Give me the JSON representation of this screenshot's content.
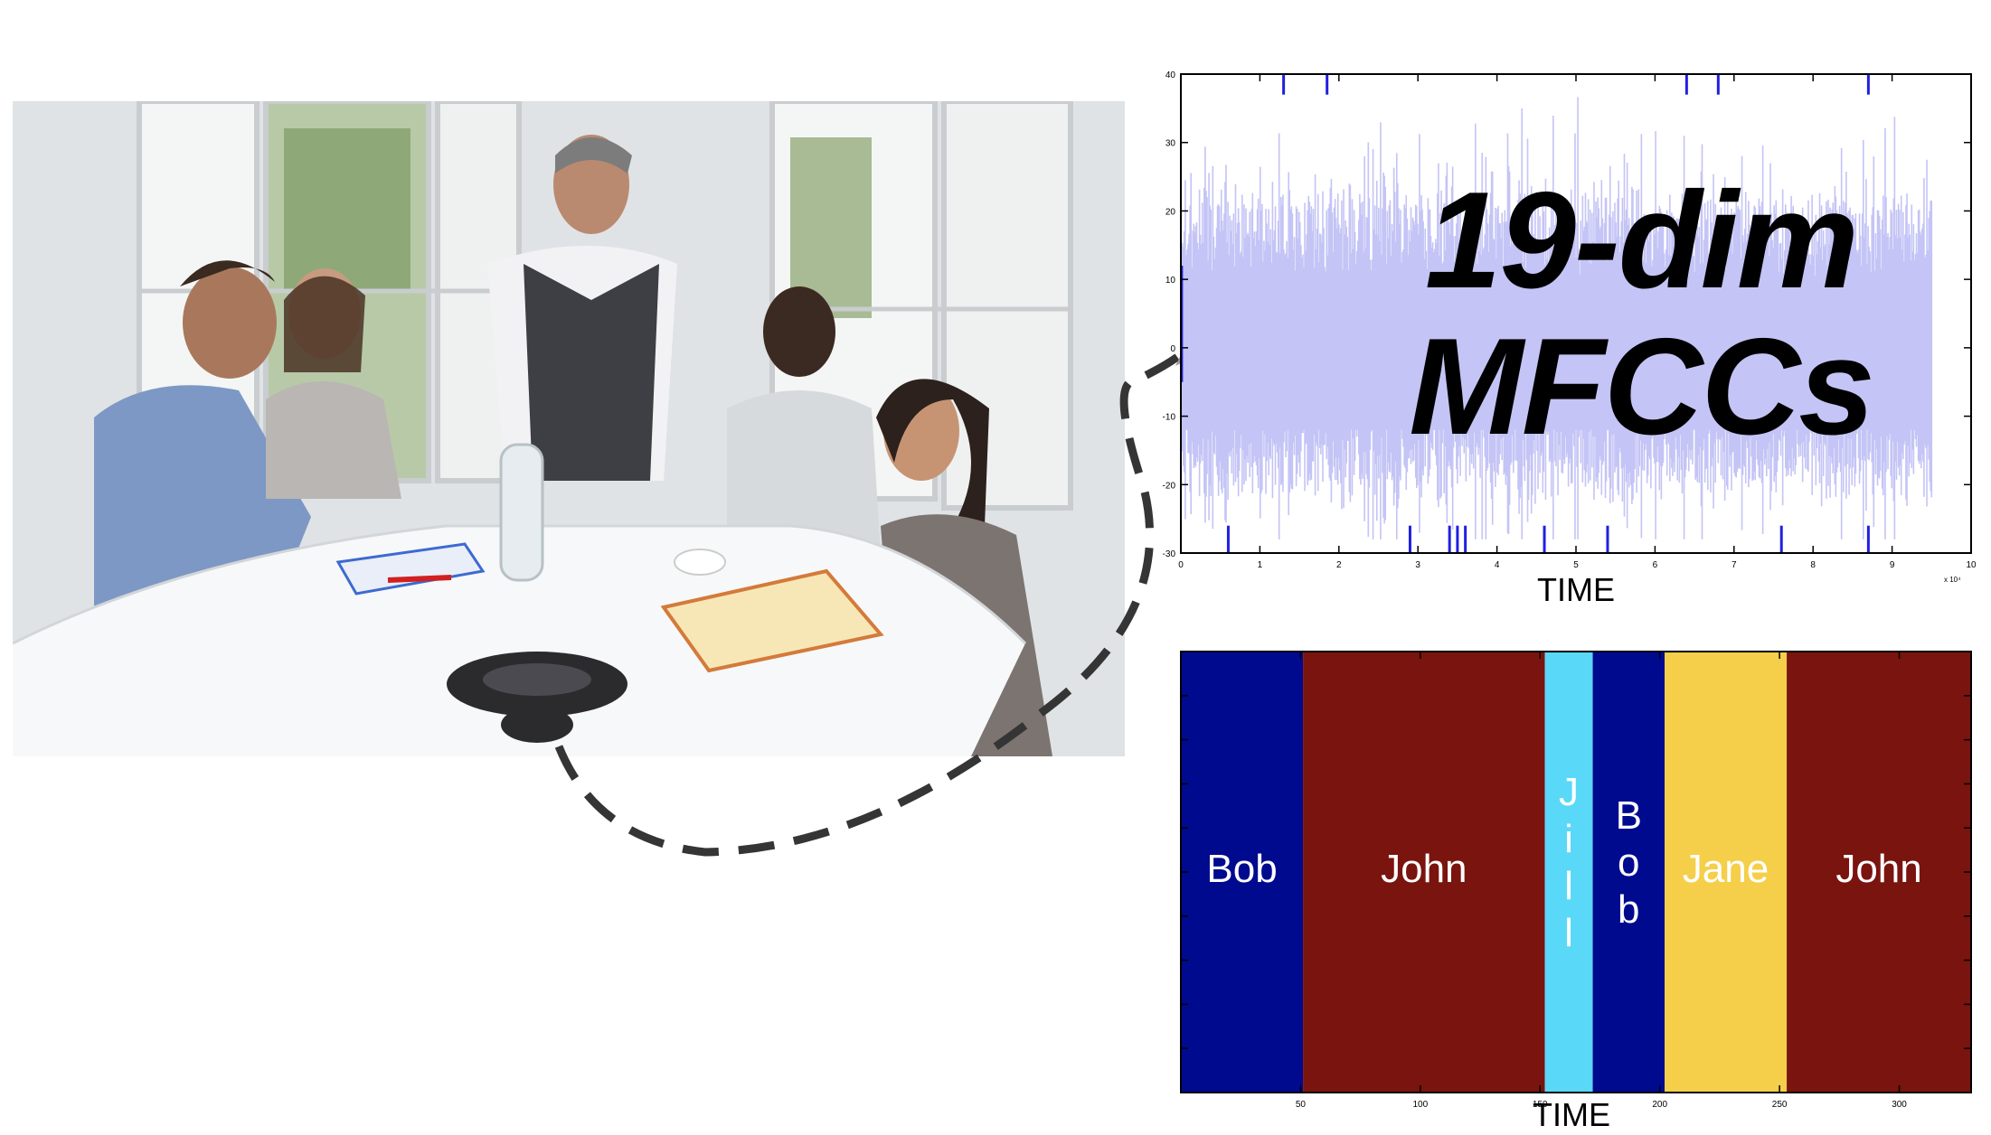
{
  "photo": {
    "description_icon": "meeting-photo"
  },
  "waveform": {
    "y_ticks": [
      "40",
      "30",
      "20",
      "10",
      "0",
      "-10",
      "-20",
      "-30"
    ],
    "x_ticks": [
      "0",
      "1",
      "2",
      "3",
      "4",
      "5",
      "6",
      "7",
      "8",
      "9",
      "10"
    ],
    "x_multiplier": "x 10⁴",
    "xlabel": "TIME",
    "overlay_line1": "19-dim",
    "overlay_line2": "MFCCs",
    "fill_color": "#c4c4f6",
    "spike_color": "#2020e0",
    "ylim": [
      -30,
      40
    ],
    "xlim": [
      0,
      10
    ]
  },
  "diarization": {
    "xlabel": "TIME",
    "x_ticks": [
      "50",
      "100",
      "150",
      "200",
      "250",
      "300"
    ],
    "xlim": [
      0,
      330
    ],
    "segments": [
      {
        "speaker": "Bob",
        "start": 0,
        "end": 51,
        "color": "#000a8f",
        "label": "Bob",
        "orientation": "horizontal"
      },
      {
        "speaker": "John",
        "start": 51,
        "end": 152,
        "color": "#7a140e",
        "label": "John",
        "orientation": "horizontal"
      },
      {
        "speaker": "Jill",
        "start": 152,
        "end": 172,
        "color": "#5ad8f8",
        "label": "J\ni\nl\nl",
        "orientation": "vertical"
      },
      {
        "speaker": "Bob",
        "start": 172,
        "end": 202,
        "color": "#000a8f",
        "label": "B\no\nb",
        "orientation": "vertical"
      },
      {
        "speaker": "Jane",
        "start": 202,
        "end": 253,
        "color": "#f5cf4a",
        "label": "Jane",
        "orientation": "horizontal"
      },
      {
        "speaker": "John",
        "start": 253,
        "end": 330,
        "color": "#7a140e",
        "label": "John",
        "orientation": "horizontal"
      }
    ]
  }
}
